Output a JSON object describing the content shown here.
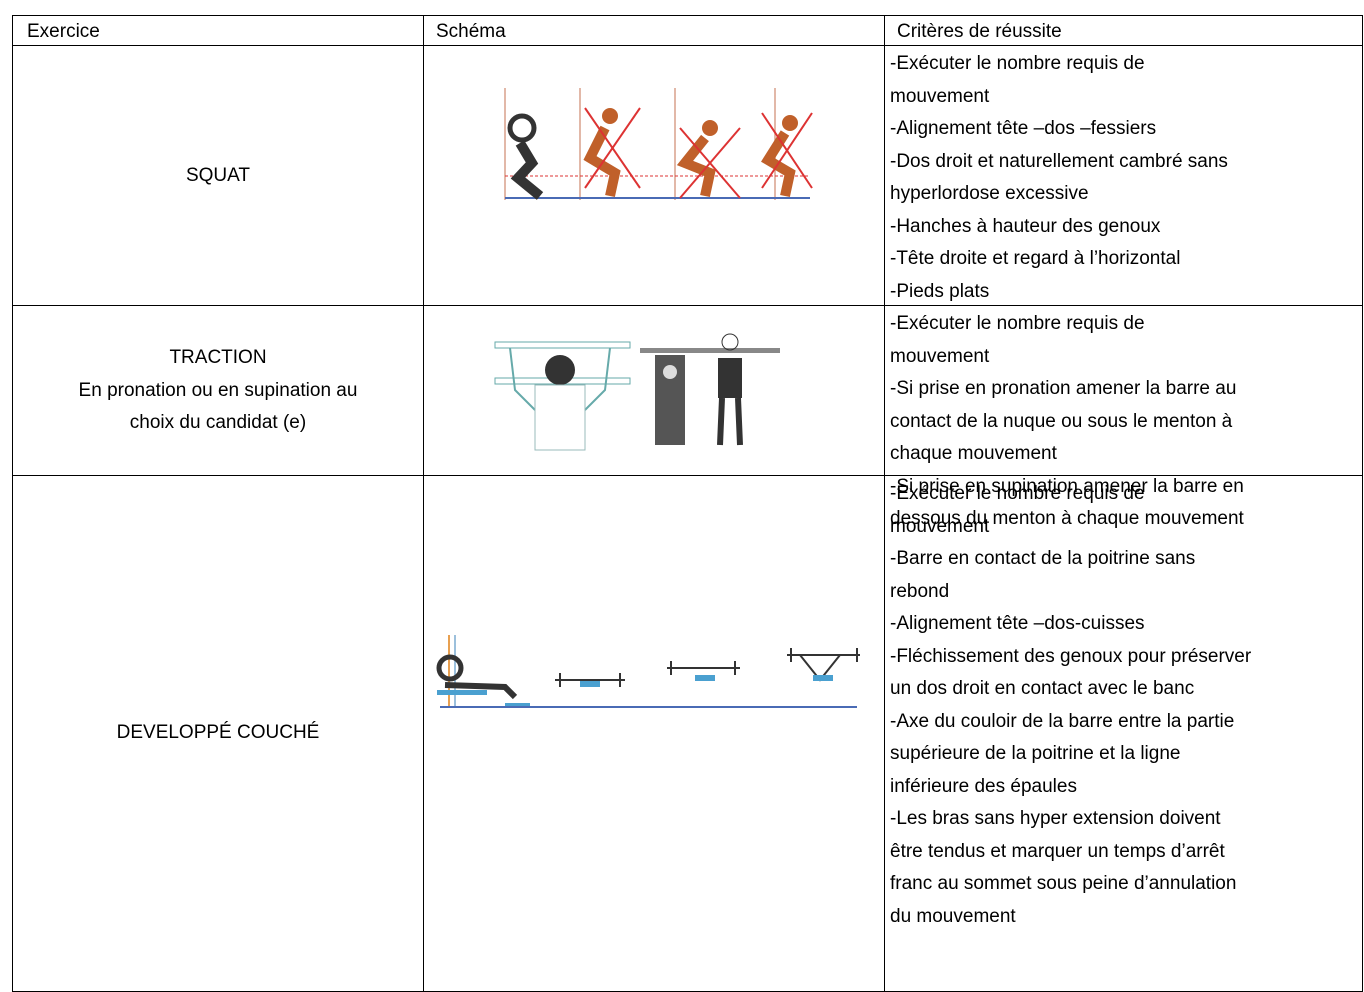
{
  "header": [
    "Exercice",
    "Schéma",
    "Critères de réussite"
  ],
  "rows": [
    {
      "exercise": [
        "SQUAT"
      ],
      "criteria": [
        "-Exécuter le nombre requis de",
        "mouvement",
        "-Alignement tête –dos –fessiers",
        "-Dos droit et naturellement cambré sans",
        "hyperlordose excessive",
        "-Hanches à hauteur des genoux",
        "-Tête droite et regard à l’horizontal",
        "-Pieds plats"
      ]
    },
    {
      "exercise": [
        "TRACTION",
        "En pronation ou en supination au",
        "choix du candidat (e)"
      ],
      "criteria": [
        "-Exécuter le nombre requis de",
        "mouvement",
        "-Si prise en pronation amener la barre au",
        "contact de la nuque ou sous le menton à",
        "chaque mouvement",
        "-Si prise en supination amener la barre  en",
        "dessous du menton à chaque mouvement"
      ]
    },
    {
      "exercise": [
        "DEVELOPPÉ COUCHÉ"
      ],
      "criteria": [
        "-Exécuter le nombre requis de",
        "mouvement",
        "-Barre en contact de la poitrine sans",
        "rebond",
        "-Alignement tête –dos-cuisses",
        "-Fléchissement des genoux pour préserver",
        "un dos droit en contact avec le banc",
        "-Axe du couloir de la barre entre la partie",
        "supérieure de la poitrine et la ligne",
        "inférieure des épaules",
        "-Les bras sans hyper extension doivent",
        "être tendus et marquer un temps d’arrêt",
        "franc au sommet sous peine d’annulation",
        "du mouvement"
      ]
    }
  ]
}
